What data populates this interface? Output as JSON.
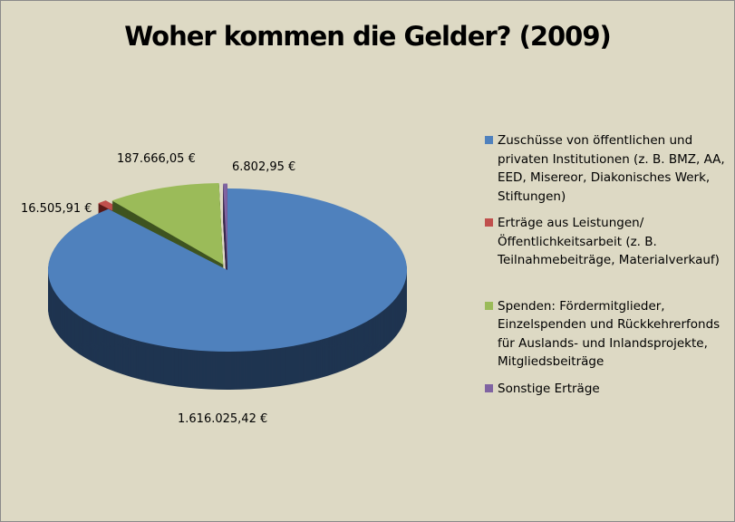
{
  "chart_data": {
    "type": "pie",
    "title": "Woher kommen die Gelder? (2009)",
    "style": "3d-exploded",
    "legend_position": "right",
    "slices": [
      {
        "label": "Zuschüsse von öffentlichen und privaten Institutionen  (z. B. BMZ, AA, EED, Misereor, Diakonisches Werk, Stiftungen)",
        "value": 1616025.42,
        "data_label": "1.616.025,42 €",
        "color": "#4f81bd",
        "dark": "#1f3450"
      },
      {
        "label": "Erträge aus Leistungen/Öffentlichkeitsarbeit  (z. B. Teilnahmebeiträge, Materialverkauf)",
        "value": 16505.91,
        "data_label": "16.505,91 €",
        "color": "#c0504d",
        "dark": "#5a1a18"
      },
      {
        "label": "Spenden: Fördermitglieder, Einzelspenden und Rückkehrerfonds für Auslands- und Inlandsprojekte, Mitgliedsbeiträge",
        "value": 187666.05,
        "data_label": "187.666,05 €",
        "color": "#9bbb59",
        "dark": "#3f5420"
      },
      {
        "label": "Sonstige Erträge",
        "value": 6802.95,
        "data_label": "6.802,95 €",
        "color": "#8064a2",
        "dark": "#3a2b4d"
      }
    ]
  }
}
